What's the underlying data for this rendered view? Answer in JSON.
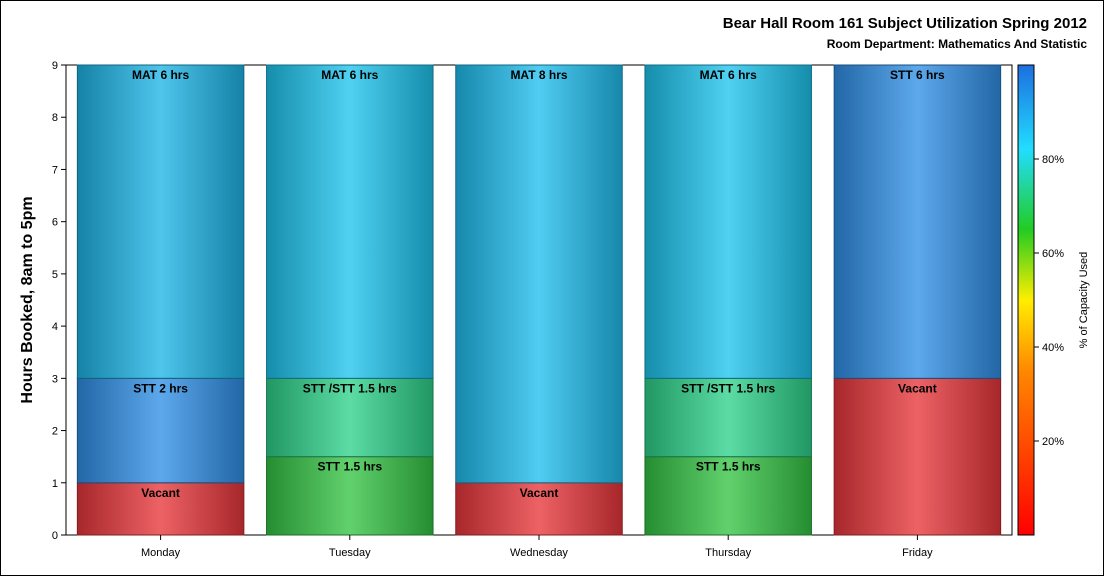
{
  "chart_data": {
    "type": "bar",
    "stacked": true,
    "title": "Bear Hall Room 161 Subject Utilization Spring 2012",
    "subtitle": "Room Department:  Mathematics And Statistic",
    "ylabel": "Hours Booked, 8am to 5pm",
    "xlabel": "",
    "ylim": [
      0,
      9
    ],
    "yticks": [
      0,
      1,
      2,
      3,
      4,
      5,
      6,
      7,
      8,
      9
    ],
    "grid": false,
    "categories": [
      "Monday",
      "Tuesday",
      "Wednesday",
      "Thursday",
      "Friday"
    ],
    "bars": [
      {
        "category": "Monday",
        "segments": [
          {
            "label": "Vacant",
            "hours": 1,
            "color": "#e8363a"
          },
          {
            "label": "STT 2 hrs",
            "hours": 2,
            "color": "#2f8fe6"
          },
          {
            "label": "MAT 6 hrs",
            "hours": 6,
            "color": "#1db5e6"
          }
        ]
      },
      {
        "category": "Tuesday",
        "segments": [
          {
            "label": "STT 1.5 hrs",
            "hours": 1.5,
            "color": "#34c444"
          },
          {
            "label": "STT /STT 1.5 hrs",
            "hours": 1.5,
            "color": "#2ed28a"
          },
          {
            "label": "MAT 6 hrs",
            "hours": 6,
            "color": "#1dc4ee"
          }
        ]
      },
      {
        "category": "Wednesday",
        "segments": [
          {
            "label": "Vacant",
            "hours": 1,
            "color": "#e8363a"
          },
          {
            "label": "MAT 8 hrs",
            "hours": 8,
            "color": "#1fbdee"
          }
        ]
      },
      {
        "category": "Thursday",
        "segments": [
          {
            "label": "STT 1.5 hrs",
            "hours": 1.5,
            "color": "#34c444"
          },
          {
            "label": "STT /STT 1.5 hrs",
            "hours": 1.5,
            "color": "#2ed28a"
          },
          {
            "label": "MAT 6 hrs",
            "hours": 6,
            "color": "#1dc4ee"
          }
        ]
      },
      {
        "category": "Friday",
        "segments": [
          {
            "label": "Vacant",
            "hours": 3,
            "color": "#e8363a"
          },
          {
            "label": "STT 6 hrs",
            "hours": 6,
            "color": "#2f8fe6"
          }
        ]
      }
    ],
    "colorbar": {
      "label": "% of Capacity Used",
      "ticks": [
        20,
        40,
        60,
        80
      ],
      "tick_labels": [
        "20%",
        "40%",
        "60%",
        "80%"
      ],
      "range": [
        0,
        100
      ],
      "stops": [
        {
          "pct": 0,
          "color": "#ff0000"
        },
        {
          "pct": 35,
          "color": "#ff8800"
        },
        {
          "pct": 50,
          "color": "#ffee00"
        },
        {
          "pct": 65,
          "color": "#22cc22"
        },
        {
          "pct": 82,
          "color": "#22ddff"
        },
        {
          "pct": 100,
          "color": "#1c6fe0"
        }
      ]
    }
  }
}
